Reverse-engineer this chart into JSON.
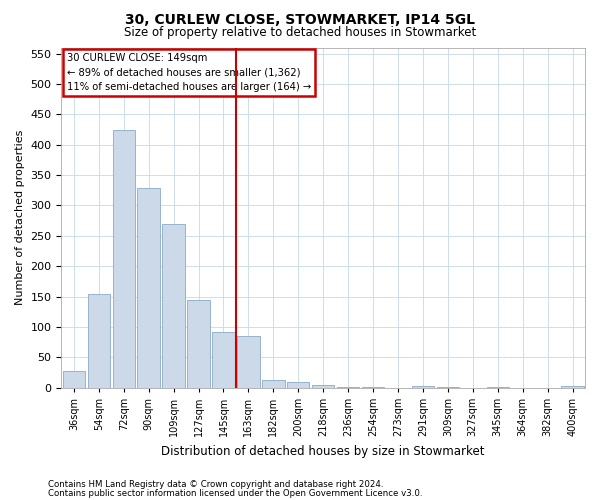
{
  "title1": "30, CURLEW CLOSE, STOWMARKET, IP14 5GL",
  "title2": "Size of property relative to detached houses in Stowmarket",
  "xlabel": "Distribution of detached houses by size in Stowmarket",
  "ylabel": "Number of detached properties",
  "categories": [
    "36sqm",
    "54sqm",
    "72sqm",
    "90sqm",
    "109sqm",
    "127sqm",
    "145sqm",
    "163sqm",
    "182sqm",
    "200sqm",
    "218sqm",
    "236sqm",
    "254sqm",
    "273sqm",
    "291sqm",
    "309sqm",
    "327sqm",
    "345sqm",
    "364sqm",
    "382sqm",
    "400sqm"
  ],
  "values": [
    27,
    155,
    425,
    328,
    270,
    145,
    92,
    85,
    12,
    10,
    5,
    2,
    1,
    0,
    3,
    1,
    0,
    1,
    0,
    0,
    3
  ],
  "bar_color": "#ccd9e8",
  "bar_edge_color": "#8aaac8",
  "vline_color": "#cc0000",
  "annotation_text": "30 CURLEW CLOSE: 149sqm\n← 89% of detached houses are smaller (1,362)\n11% of semi-detached houses are larger (164) →",
  "annotation_box_color": "#cc0000",
  "ylim": [
    0,
    560
  ],
  "yticks": [
    0,
    50,
    100,
    150,
    200,
    250,
    300,
    350,
    400,
    450,
    500,
    550
  ],
  "footer1": "Contains HM Land Registry data © Crown copyright and database right 2024.",
  "footer2": "Contains public sector information licensed under the Open Government Licence v3.0.",
  "bg_color": "#ffffff",
  "plot_bg_color": "#ffffff",
  "grid_color": "#c8d8e8"
}
